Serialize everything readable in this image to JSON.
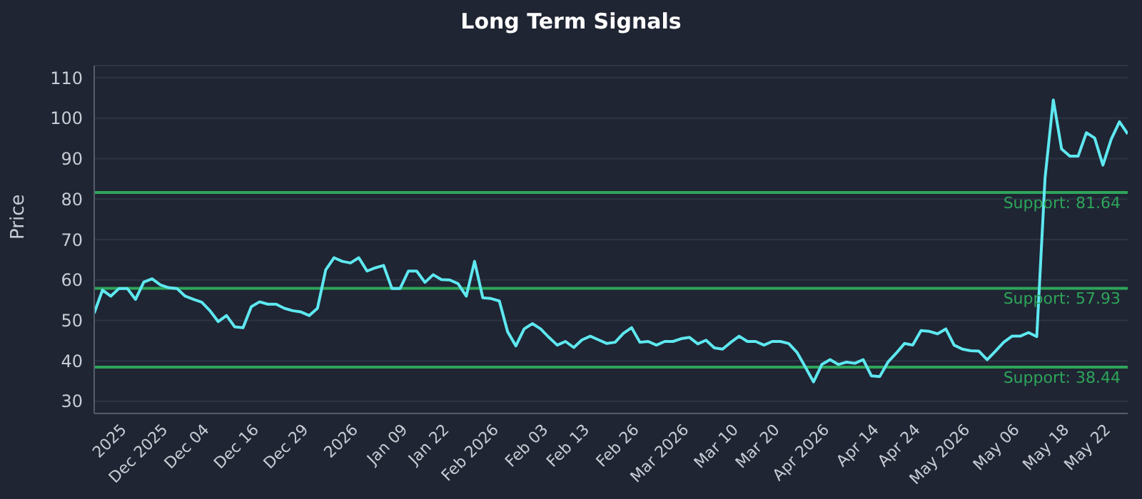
{
  "chart_data": {
    "type": "line",
    "title": "Long Term Signals",
    "ylabel": "Price",
    "categories": [
      null,
      null,
      null,
      null,
      "2025",
      null,
      null,
      null,
      null,
      "Dec 2025",
      null,
      null,
      null,
      null,
      "Dec 04",
      null,
      null,
      null,
      null,
      null,
      "Dec 16",
      null,
      null,
      null,
      null,
      null,
      "Dec 29",
      null,
      null,
      null,
      null,
      null,
      "2026",
      null,
      null,
      null,
      null,
      null,
      "Jan 09",
      null,
      null,
      null,
      null,
      "Jan 22",
      null,
      null,
      null,
      null,
      null,
      "Feb 2026",
      null,
      null,
      null,
      null,
      null,
      "Feb 03",
      null,
      null,
      null,
      null,
      "Feb 13",
      null,
      null,
      null,
      null,
      null,
      "Feb 26",
      null,
      null,
      null,
      null,
      null,
      "Mar 2026",
      null,
      null,
      null,
      null,
      null,
      "Mar 10",
      null,
      null,
      null,
      null,
      "Mar 20",
      null,
      null,
      null,
      null,
      null,
      "Apr 2026",
      null,
      null,
      null,
      null,
      null,
      "Apr 14",
      null,
      null,
      null,
      null,
      "Apr 24",
      null,
      null,
      null,
      null,
      null,
      "May 2026",
      null,
      null,
      null,
      null,
      null,
      "May 06",
      null,
      null,
      null,
      null,
      null,
      "May 18",
      null,
      null,
      null,
      null,
      "May 22",
      null,
      null
    ],
    "series": [
      {
        "color": "#5ee8f0",
        "values": [
          51.8,
          57.5,
          56,
          57.9,
          57.9,
          55.2,
          59.5,
          60.3,
          58.8,
          58.1,
          57.9,
          56,
          55.2,
          54.5,
          52.4,
          49.7,
          51.2,
          48.4,
          48.2,
          53.4,
          54.6,
          54,
          54,
          53,
          52.4,
          52.1,
          51.2,
          53,
          62.5,
          65.5,
          64.6,
          64.2,
          65.5,
          62.2,
          63,
          63.6,
          57.9,
          57.9,
          62.2,
          62.2,
          59.4,
          61.3,
          60.1,
          60,
          59.1,
          56,
          64.6,
          55.6,
          55.4,
          54.8,
          47.2,
          43.7,
          47.9,
          49.2,
          47.9,
          45.8,
          43.9,
          44.8,
          43.3,
          45.2,
          46.1,
          45.2,
          44.3,
          44.6,
          46.8,
          48.2,
          44.6,
          44.8,
          43.9,
          44.8,
          44.8,
          45.5,
          45.8,
          44.2,
          45.1,
          43.2,
          42.9,
          44.6,
          46.1,
          44.8,
          44.8,
          43.9,
          44.8,
          44.8,
          44.3,
          42.1,
          38.5,
          34.8,
          39.1,
          40.3,
          39.1,
          39.7,
          39.4,
          40.3,
          36.3,
          36.1,
          39.7,
          41.9,
          44.3,
          43.9,
          47.5,
          47.3,
          46.7,
          47.9,
          43.9,
          42.9,
          42.5,
          42.4,
          40.3,
          42.4,
          44.6,
          46.1,
          46.1,
          47,
          46,
          85.2,
          104.5,
          92.4,
          90.6,
          90.6,
          96.4,
          95.1,
          88.4,
          94.8,
          99.1,
          96.1
        ]
      }
    ],
    "ylim": [
      27,
      113
    ],
    "yticks": [
      30,
      40,
      50,
      60,
      70,
      80,
      90,
      100,
      110
    ],
    "grid": "y",
    "line_style": "solid",
    "ref_lines": [
      {
        "axis": "y",
        "value": 81.64,
        "label": "Support: 81.64",
        "color": "#2ea55a"
      },
      {
        "axis": "y",
        "value": 57.93,
        "label": "Support: 57.93",
        "color": "#2ea55a"
      },
      {
        "axis": "y",
        "value": 38.44,
        "label": "Support: 38.44",
        "color": "#2ea55a"
      }
    ]
  }
}
